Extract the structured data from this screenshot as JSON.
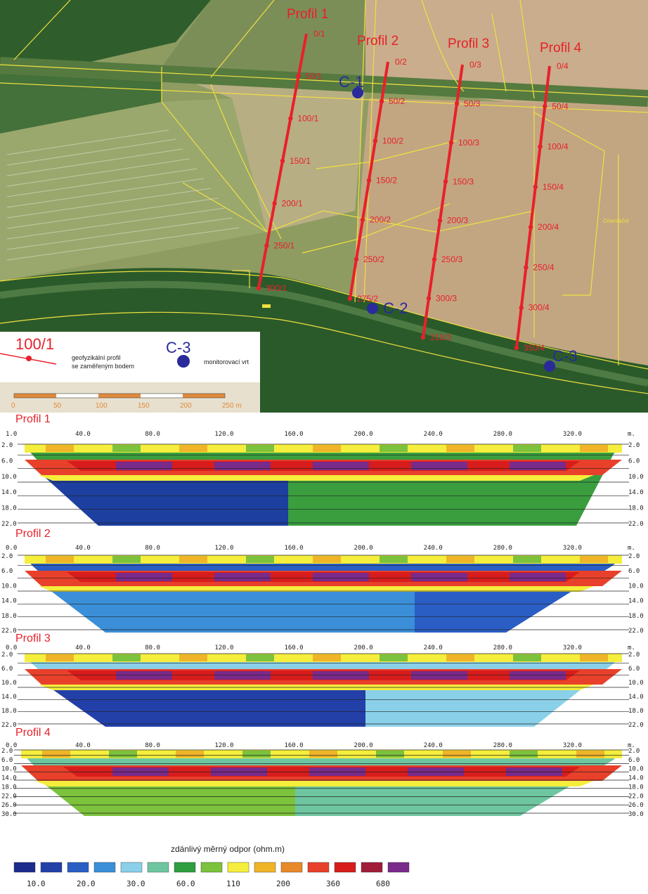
{
  "map": {
    "profiles": [
      {
        "label": "Profil 1",
        "stations": [
          "0/1",
          "50/1",
          "100/1",
          "150/1",
          "200/1",
          "250/1",
          "300/1"
        ]
      },
      {
        "label": "Profil 2",
        "stations": [
          "0/2",
          "50/2",
          "100/2",
          "150/2",
          "200/2",
          "250/2",
          "275/2"
        ]
      },
      {
        "label": "Profil 3",
        "stations": [
          "0/3",
          "50/3",
          "100/3",
          "150/3",
          "200/3",
          "250/3",
          "300/3",
          "315/3"
        ]
      },
      {
        "label": "Profil 4",
        "stations": [
          "0/4",
          "50/4",
          "100/4",
          "150/4",
          "200/4",
          "250/4",
          "300/4",
          "350/4"
        ]
      }
    ],
    "wells": [
      "C-1",
      "C-2",
      "C-3"
    ],
    "field_label": "Orientační",
    "legend": {
      "profile_sample": "100/1",
      "profile_text_1": "geofyzikální profil",
      "profile_text_2": "se zaměřeným bodem",
      "well_sample": "C-3",
      "well_text": "monitorovací vrt"
    },
    "scale_bar": {
      "ticks": [
        "0",
        "50",
        "100",
        "150",
        "200",
        "250 m"
      ]
    },
    "colors": {
      "profile": "#e8202a",
      "well": "#2a2a9a",
      "parcel_line": "#f0e040"
    }
  },
  "sections": [
    {
      "title": "Profil 1",
      "x_ticks": [
        "1.0",
        "40.0",
        "80.0",
        "120.0",
        "160.0",
        "200.0",
        "240.0",
        "280.0",
        "320.0"
      ],
      "depth_ticks": [
        "2.0",
        "6.0",
        "10.0",
        "14.0",
        "18.0",
        "22.0"
      ],
      "unit": "m."
    },
    {
      "title": "Profil 2",
      "x_ticks": [
        "0.0",
        "40.0",
        "80.0",
        "120.0",
        "160.0",
        "200.0",
        "240.0",
        "280.0",
        "320.0"
      ],
      "depth_ticks": [
        "2.0",
        "6.0",
        "10.0",
        "14.0",
        "18.0",
        "22.0"
      ],
      "unit": "m."
    },
    {
      "title": "Profil 3",
      "x_ticks": [
        "0.0",
        "40.0",
        "80.0",
        "120.0",
        "160.0",
        "200.0",
        "240.0",
        "280.0",
        "320.0"
      ],
      "depth_ticks": [
        "2.0",
        "6.0",
        "10.0",
        "14.0",
        "18.0",
        "22.0"
      ],
      "unit": "m."
    },
    {
      "title": "Profil 4",
      "x_ticks": [
        "0.0",
        "40.0",
        "80.0",
        "120.0",
        "160.0",
        "200.0",
        "240.0",
        "280.0",
        "320.0"
      ],
      "depth_ticks": [
        "2.0",
        "6.0",
        "10.0",
        "14.0",
        "18.0",
        "22.0",
        "26.0",
        "30.0"
      ],
      "unit": "m."
    }
  ],
  "legend": {
    "title": "zdánlivý měrný odpor (ohm.m)",
    "labels": [
      "10.0",
      "20.0",
      "30.0",
      "60.0",
      "110",
      "200",
      "360",
      "680"
    ],
    "swatches": [
      "#1c2b8c",
      "#233fa8",
      "#2a5ec4",
      "#3a8fd8",
      "#8ad0e8",
      "#6ec6a0",
      "#2e9e3e",
      "#7cc23c",
      "#f5ee3c",
      "#f0b428",
      "#e88a2a",
      "#e8402a",
      "#d81c1c",
      "#a01c38",
      "#7a2a8a"
    ]
  }
}
